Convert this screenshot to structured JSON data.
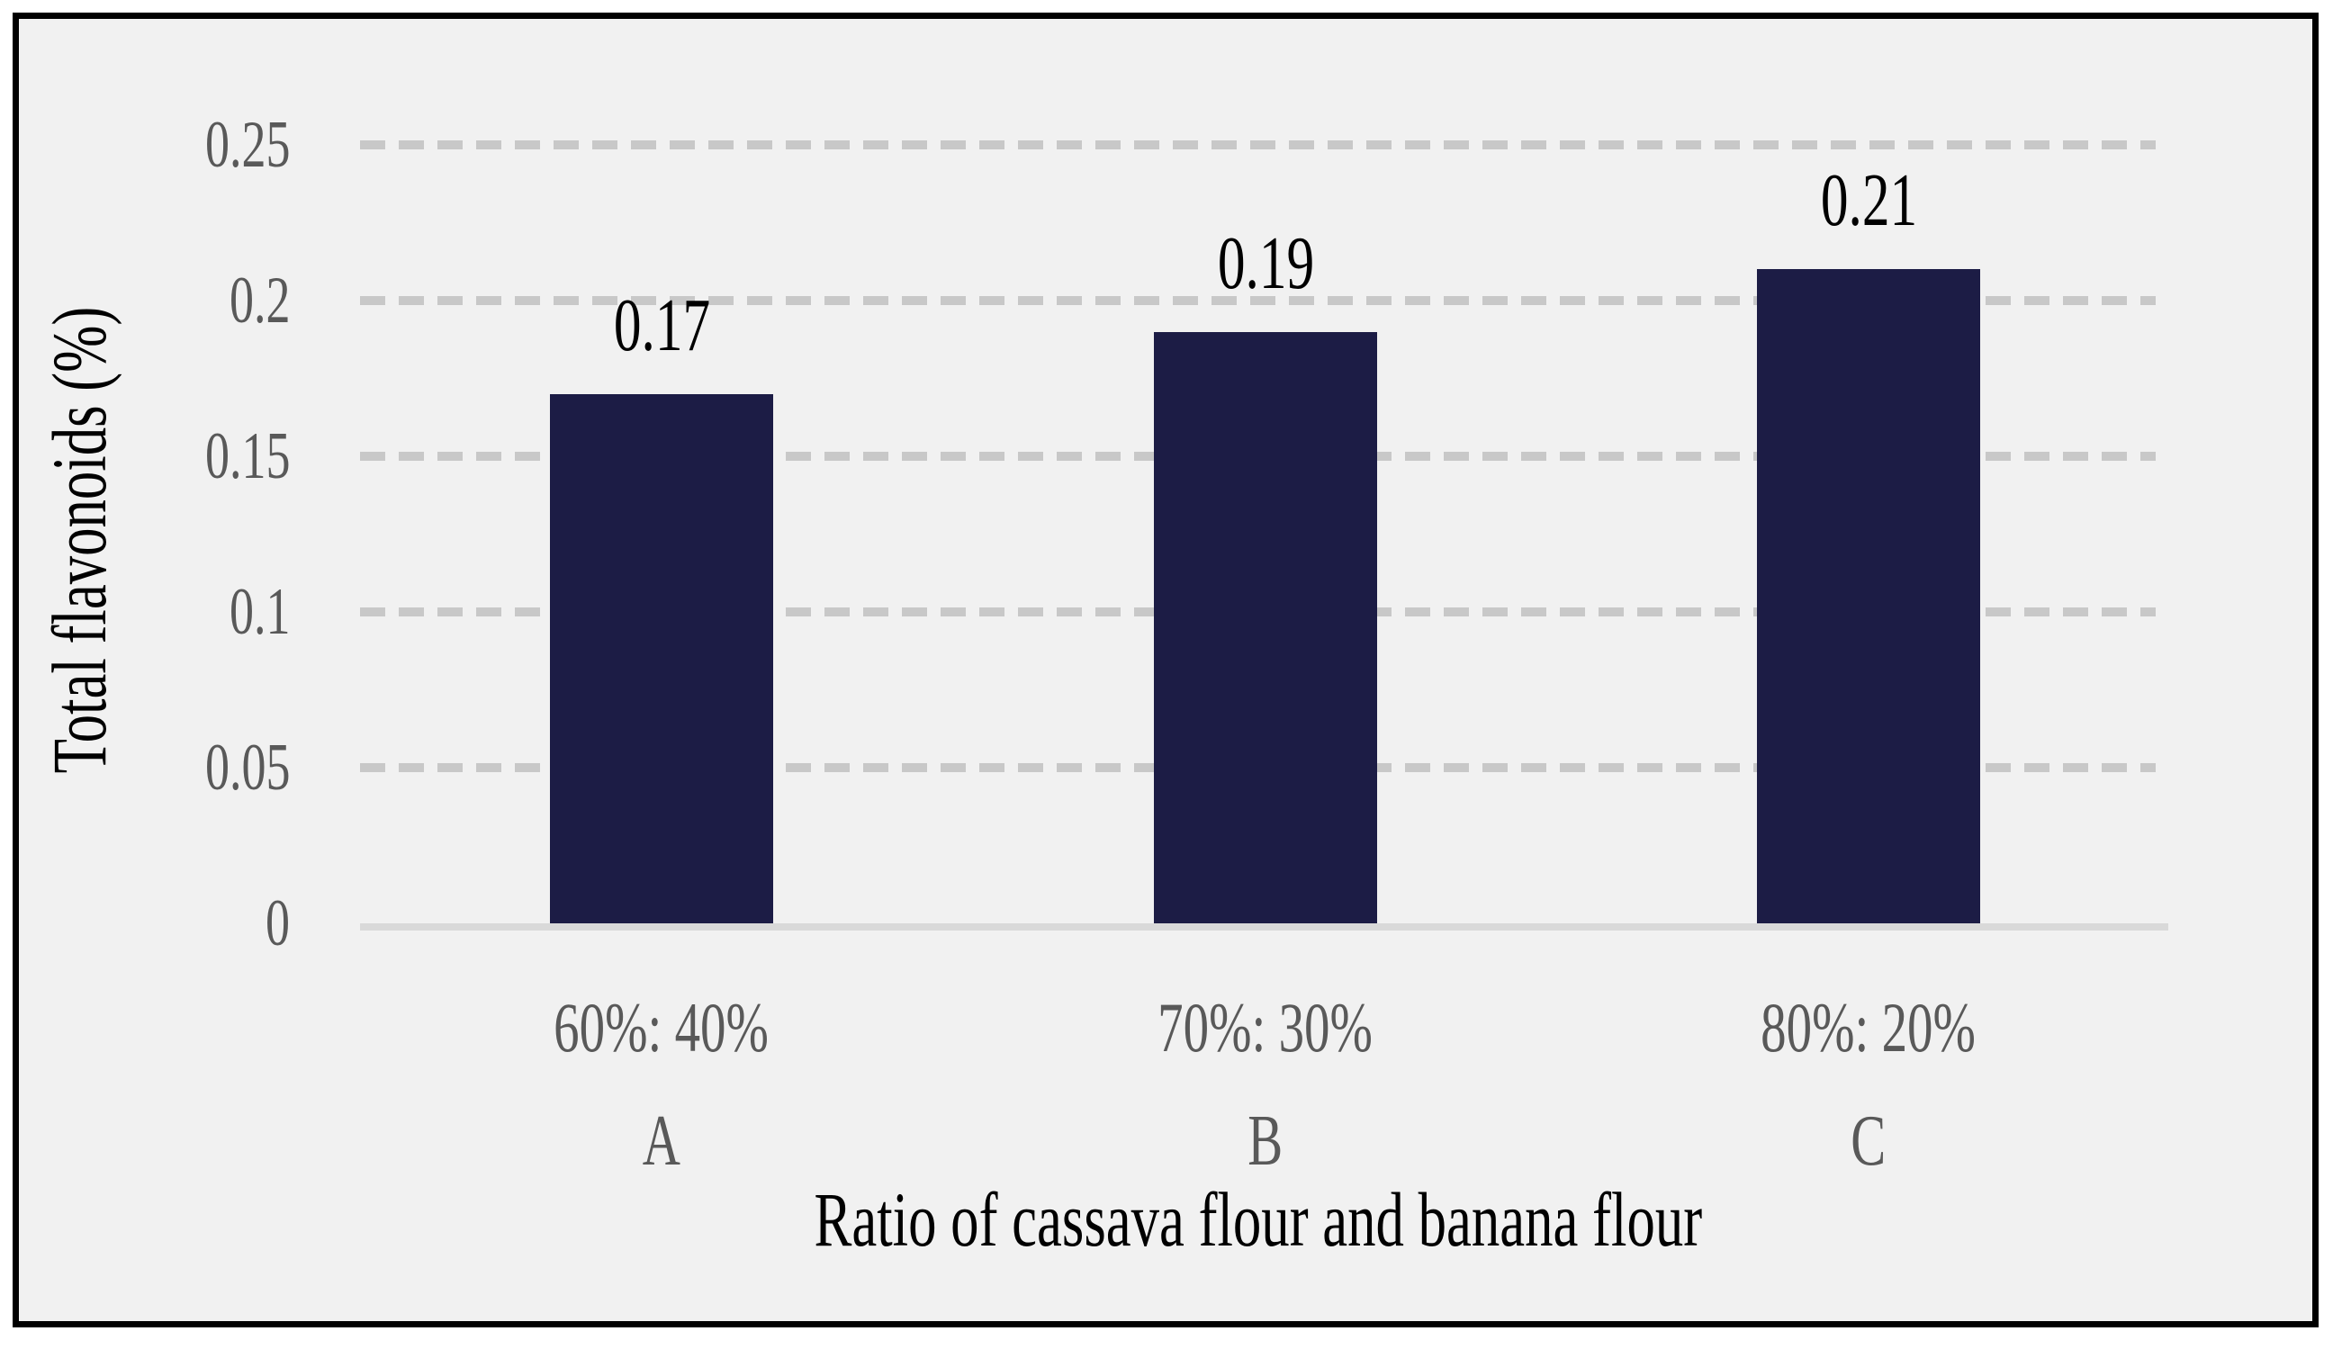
{
  "chart_data": {
    "type": "bar",
    "title": "",
    "categories": [
      "60%: 40%",
      "70%: 30%",
      "80%: 20%"
    ],
    "category_letters": [
      "A",
      "B",
      "C"
    ],
    "values": [
      0.17,
      0.19,
      0.21
    ],
    "value_labels": [
      "0.17",
      "0.19",
      "0.21"
    ],
    "xlabel": "Ratio of cassava flour and banana flour",
    "ylabel": "Total flavonoids (%)",
    "ylim": [
      0,
      0.25
    ],
    "ytick_interval": 0.05,
    "yticks": [
      "0.25",
      "0.2",
      "0.15",
      "0.1",
      "0.05",
      "0"
    ],
    "ytick_values": [
      0.25,
      0.2,
      0.15,
      0.1,
      0.05,
      0
    ],
    "grid": "horizontal-dashed",
    "legend": "none",
    "colors": {
      "bar": "#1c1c45",
      "plot_background": "#f1f1f1",
      "frame_border": "#000000",
      "gridline": "#c8c8c8",
      "axis_line": "#d9d9d9",
      "tick_label": "#595959",
      "category_label": "#595959",
      "value_label": "#000000",
      "axis_title": "#000000"
    }
  }
}
